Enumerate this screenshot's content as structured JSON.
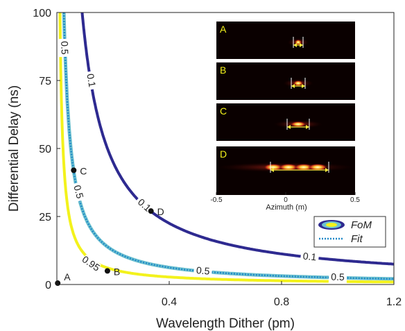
{
  "chart_data": {
    "type": "line",
    "xlabel": "Wavelength Dither (pm)",
    "ylabel": "Differential Delay (ns)",
    "xlim": [
      0,
      1.2
    ],
    "ylim": [
      0,
      100
    ],
    "x_ticks": [
      {
        "value": 0.4,
        "label": "0.4"
      },
      {
        "value": 0.8,
        "label": "0.8"
      },
      {
        "value": 1.2,
        "label": "1.2"
      }
    ],
    "y_ticks": [
      {
        "value": 0,
        "label": "0"
      },
      {
        "value": 25,
        "label": "25"
      },
      {
        "value": 50,
        "label": "50"
      },
      {
        "value": 75,
        "label": "75"
      },
      {
        "value": 100,
        "label": "100"
      }
    ],
    "contours": [
      {
        "level_label": "0.1",
        "k": 9.0,
        "color": "#2e2a90",
        "labels": [
          {
            "x": 0.12,
            "y": 75,
            "text": "0.1"
          },
          {
            "x": 0.31,
            "y": 29,
            "text": "0.1"
          },
          {
            "x": 0.9,
            "y": 10,
            "text": "0.1"
          }
        ]
      },
      {
        "level_label": "0.5",
        "k": 2.5,
        "color": "#6ec1cf",
        "labels": [
          {
            "x": 0.025,
            "y": 87,
            "text": "0.5"
          },
          {
            "x": 0.075,
            "y": 34,
            "text": "0.5"
          },
          {
            "x": 0.52,
            "y": 4.8,
            "text": "0.5"
          },
          {
            "x": 1.0,
            "y": 2.5,
            "text": "0.5"
          }
        ]
      },
      {
        "level_label": "0.95",
        "k": 1.1,
        "color": "#f3f21c",
        "labels": [
          {
            "x": 0.12,
            "y": 7.5,
            "text": "0.95"
          }
        ]
      }
    ],
    "points": [
      {
        "label": "A",
        "x": 0.003,
        "y": 0.5
      },
      {
        "label": "B",
        "x": 0.18,
        "y": 5
      },
      {
        "label": "C",
        "x": 0.06,
        "y": 42
      },
      {
        "label": "D",
        "x": 0.335,
        "y": 27
      }
    ],
    "legend": {
      "placement": "bottom-right",
      "entries": [
        "FoM",
        "Fit"
      ]
    },
    "inset": {
      "panels": [
        "A",
        "B",
        "C",
        "D"
      ],
      "xlabel": "Azimuth (m)",
      "xlim": [
        -0.5,
        0.5
      ],
      "x_ticks": [
        "-0.5",
        "0",
        "0.5"
      ]
    }
  }
}
